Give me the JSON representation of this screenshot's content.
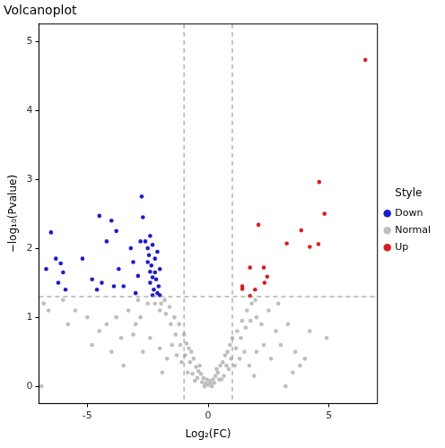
{
  "chart_data": {
    "type": "scatter",
    "title": "Volcanoplot",
    "x_label": "Log₂(FC)",
    "y_label": "−log₁₀(Pvalue)",
    "legend_title": "Style",
    "legend": "right",
    "grid": false,
    "xlim": [
      -7,
      7
    ],
    "xticks": [
      -5,
      0,
      5
    ],
    "ylim": [
      -0.25,
      5.25
    ],
    "yticks": [
      0,
      1,
      2,
      3,
      4,
      5
    ],
    "vlines": [
      -1,
      1
    ],
    "hline": 1.3,
    "series": [
      {
        "name": "Down",
        "color": "#1c1cc8",
        "marker": "circle",
        "x": [
          -6.5,
          -6.7,
          -6.3,
          -6.1,
          -6.0,
          -6.2,
          -5.9,
          -5.2,
          -4.8,
          -4.6,
          -4.5,
          -4.4,
          -4.2,
          -4.0,
          -3.9,
          -3.8,
          -3.7,
          -3.5,
          -3.2,
          -3.1,
          -3.0,
          -2.9,
          -2.8,
          -2.75,
          -2.7,
          -2.6,
          -2.5,
          -2.45,
          -2.4,
          -2.4,
          -2.3,
          -2.35,
          -2.3,
          -2.25,
          -2.2,
          -2.2,
          -2.15,
          -2.1,
          -2.1,
          -2.05,
          -2.0,
          -2.0,
          -2.3,
          -2.4,
          -2.5
        ],
        "values": [
          2.23,
          1.7,
          1.85,
          1.78,
          1.65,
          1.5,
          1.4,
          1.85,
          1.55,
          1.4,
          2.47,
          1.5,
          2.1,
          2.4,
          1.45,
          2.25,
          1.7,
          1.45,
          2.0,
          1.8,
          1.35,
          1.6,
          2.1,
          2.75,
          2.45,
          2.1,
          2.0,
          1.9,
          2.18,
          1.5,
          1.32,
          1.75,
          2.05,
          1.4,
          1.65,
          1.85,
          1.55,
          1.35,
          1.95,
          1.45,
          1.7,
          1.32,
          1.58,
          1.66,
          1.8
        ]
      },
      {
        "name": "Normal",
        "color": "#bebebe",
        "marker": "circle",
        "x": [
          0,
          0.1,
          -0.1,
          0.2,
          -0.2,
          0.3,
          -0.3,
          0.4,
          -0.4,
          0.5,
          -0.5,
          0.6,
          -0.6,
          0.7,
          -0.7,
          0.8,
          -0.8,
          0.9,
          -0.9,
          1.0,
          -1.0,
          0.25,
          -0.25,
          0.45,
          -0.45,
          0.65,
          -0.65,
          0.85,
          -0.85,
          1.1,
          -1.1,
          1.3,
          -1.3,
          1.5,
          -1.5,
          1.2,
          -1.2,
          1.4,
          -1.4,
          1.6,
          -1.6,
          1.8,
          -1.8,
          2.0,
          -2.0,
          2.2,
          -2.2,
          2.5,
          -2.5,
          2.8,
          -2.8,
          3.0,
          -3.0,
          3.3,
          -3.3,
          3.6,
          -3.6,
          4.0,
          -4.0,
          -4.5,
          -5.0,
          -5.5,
          -6.0,
          -6.8,
          -6.6,
          -6.9,
          3.2,
          4.9,
          2.0,
          -2.0,
          1.7,
          -1.7,
          2.3,
          -2.4,
          2.6,
          -2.7,
          3.5,
          -3.5,
          1.9,
          -1.9,
          0.15,
          -0.15,
          0.05,
          -0.05,
          0.35,
          -0.35,
          0.55,
          -0.55,
          0.75,
          -0.75,
          0.95,
          -0.95,
          1.15,
          -1.15,
          1.35,
          -1.35,
          1.55,
          -1.55,
          1.75,
          -1.75,
          1.95,
          -1.95,
          -3.8,
          -4.2,
          -3.1,
          2.9,
          -2.9,
          -4.8,
          -5.8,
          4.2,
          3.8
        ],
        "values": [
          0.02,
          0.05,
          0.04,
          0.1,
          0.12,
          0.15,
          0.18,
          0.2,
          0.22,
          0.3,
          0.28,
          0.35,
          0.4,
          0.45,
          0.5,
          0.5,
          0.55,
          0.6,
          0.62,
          0.7,
          0.75,
          0.05,
          0.06,
          0.1,
          0.12,
          0.15,
          0.18,
          0.25,
          0.2,
          0.3,
          0.35,
          0.4,
          0.45,
          0.5,
          0.6,
          0.8,
          0.9,
          0.95,
          1.0,
          1.1,
          1.15,
          1.2,
          1.25,
          1.0,
          1.1,
          0.9,
          1.2,
          1.1,
          1.2,
          0.8,
          1.0,
          0.6,
          0.9,
          0.9,
          1.1,
          0.5,
          0.7,
          0.4,
          0.5,
          0.8,
          1.0,
          1.1,
          1.25,
          1.2,
          1.1,
          0.0,
          0.0,
          0.7,
          0.5,
          0.55,
          0.3,
          0.4,
          0.6,
          0.7,
          0.4,
          0.5,
          0.2,
          0.3,
          0.15,
          0.2,
          0.0,
          0.0,
          0.08,
          0.1,
          0.25,
          0.3,
          0.1,
          0.08,
          0.3,
          0.35,
          0.4,
          0.45,
          0.55,
          0.6,
          0.7,
          0.75,
          0.85,
          0.9,
          0.95,
          1.05,
          1.25,
          1.2,
          1.0,
          0.9,
          0.75,
          1.2,
          1.25,
          0.6,
          0.9,
          0.8,
          0.3
        ]
      },
      {
        "name": "Up",
        "color": "#d62020",
        "marker": "circle",
        "x": [
          6.5,
          4.59,
          4.81,
          2.08,
          3.85,
          4.2,
          4.56,
          3.25,
          1.73,
          2.3,
          1.41,
          1.41,
          1.94,
          2.44,
          2.33,
          1.73
        ],
        "values": [
          4.73,
          2.96,
          2.5,
          2.34,
          2.26,
          2.02,
          2.06,
          2.07,
          1.72,
          1.72,
          1.45,
          1.41,
          1.4,
          1.59,
          1.5,
          1.31
        ]
      }
    ]
  }
}
